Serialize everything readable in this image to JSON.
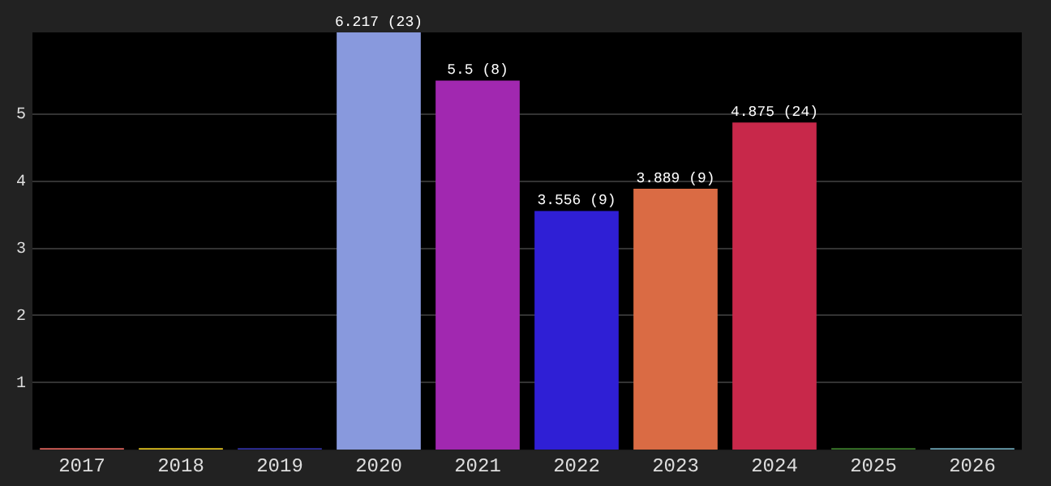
{
  "chart_data": {
    "type": "bar",
    "categories": [
      "2017",
      "2018",
      "2019",
      "2020",
      "2021",
      "2022",
      "2023",
      "2024",
      "2025",
      "2026"
    ],
    "values": [
      0,
      0,
      0,
      6.217,
      5.5,
      3.556,
      3.889,
      4.875,
      0,
      0
    ],
    "colors": [
      "#d9605a",
      "#e0c020",
      "#3030a0",
      "#8899dd",
      "#a128b0",
      "#2f1fd5",
      "#da6b44",
      "#c8284a",
      "#3a7a2a",
      "#6aa0b0"
    ],
    "value_labels": [
      null,
      null,
      null,
      "6.217 (23)",
      "5.5 (8)",
      "3.556 (9)",
      "3.889 (9)",
      "4.875 (24)",
      null,
      null
    ],
    "ylim": [
      0,
      6.217
    ],
    "yticks": [
      1,
      2,
      3,
      4,
      5
    ],
    "grid": "y",
    "legend": false
  }
}
